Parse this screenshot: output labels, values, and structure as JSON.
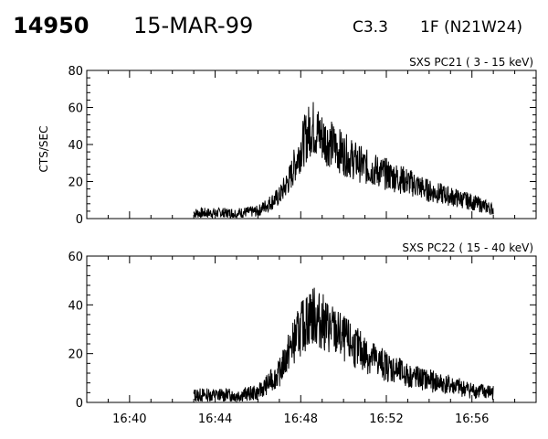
{
  "header": {
    "event_id": "14950",
    "date": "15-MAR-99",
    "goes_class": "C3.3",
    "location": "1F (N21W24)"
  },
  "colors": {
    "trace": "#000000",
    "axes": "#000000",
    "background": "#ffffff"
  },
  "chart_data": [
    {
      "type": "line",
      "title": "SXS PC21  (  3 - 15 keV)",
      "ylabel": "CTS/SEC",
      "xlabel": "",
      "ylim": [
        0,
        80
      ],
      "yticks": [
        0,
        20,
        40,
        60,
        80
      ],
      "xlim_minutes": [
        998,
        1019
      ],
      "x_start": "16:43",
      "x_end": "16:57",
      "grid": false,
      "series": [
        {
          "x": [
            "16:43",
            "16:44",
            "16:45",
            "16:46",
            "16:47",
            "16:47:30",
            "16:48",
            "16:48:30",
            "16:49",
            "16:50",
            "16:51",
            "16:52",
            "16:53",
            "16:54",
            "16:55",
            "16:56",
            "16:57"
          ],
          "y": [
            3,
            3,
            3,
            4,
            12,
            22,
            38,
            50,
            44,
            35,
            28,
            24,
            20,
            15,
            12,
            9,
            5
          ]
        }
      ]
    },
    {
      "type": "line",
      "title": "SXS PC22  ( 15 - 40 keV)",
      "ylabel": "",
      "xlabel": "",
      "ylim": [
        0,
        60
      ],
      "yticks": [
        0,
        20,
        40,
        60
      ],
      "xlim_minutes": [
        998,
        1019
      ],
      "x_start": "16:43",
      "x_end": "16:57",
      "grid": false,
      "series": [
        {
          "x": [
            "16:43",
            "16:44",
            "16:45",
            "16:46",
            "16:47",
            "16:47:30",
            "16:48",
            "16:48:30",
            "16:49",
            "16:50",
            "16:51",
            "16:52",
            "16:53",
            "16:54",
            "16:55",
            "16:56",
            "16:57"
          ],
          "y": [
            3,
            3,
            3,
            4,
            12,
            22,
            30,
            36,
            33,
            26,
            20,
            15,
            11,
            9,
            7,
            5,
            4
          ]
        }
      ]
    }
  ],
  "x_axis": {
    "tick_labels": [
      "16:40",
      "16:44",
      "16:48",
      "16:52",
      "16:56"
    ],
    "tick_minutes": [
      1000,
      1004,
      1008,
      1012,
      1016
    ]
  }
}
